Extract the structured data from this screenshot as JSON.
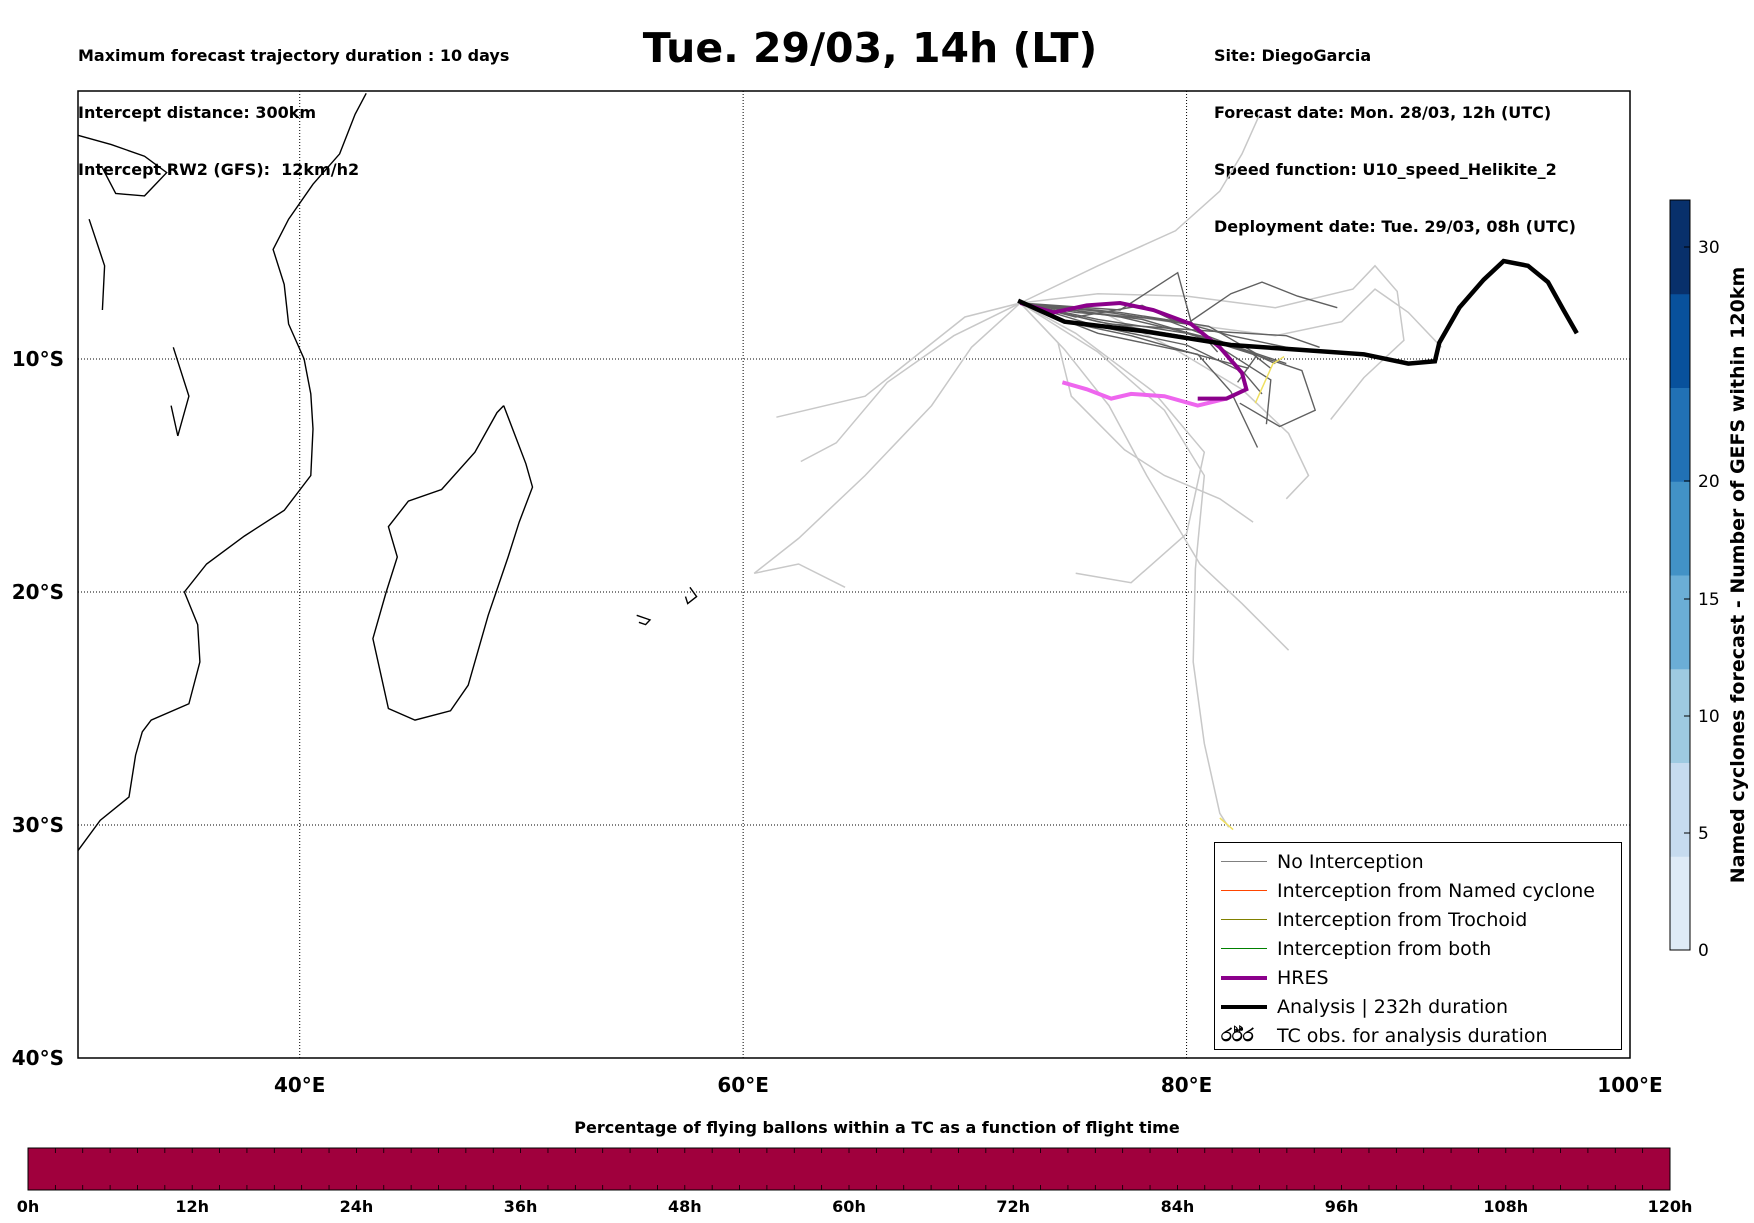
{
  "header": {
    "left_lines": [
      "Maximum forecast trajectory duration : 10 days",
      "Intercept distance: 300km",
      "Intercept RW2 (GFS):  12km/h2"
    ],
    "title": "Tue. 29/03, 14h (LT)",
    "right_lines": [
      "Site: DiegoGarcia",
      "Forecast date: Mon. 28/03, 12h (UTC)",
      "Speed function: U10_speed_Helikite_2",
      "Deployment date: Tue. 29/03, 08h (UTC)"
    ]
  },
  "map": {
    "lon_range": [
      30,
      100
    ],
    "lat_range": [
      -40,
      1.5
    ],
    "lon_ticks": [
      "40°E",
      "60°E",
      "80°E",
      "100°E"
    ],
    "lat_ticks": [
      "10°S",
      "20°S",
      "30°S",
      "40°S"
    ]
  },
  "legend": {
    "items": [
      {
        "label": "No Interception",
        "color": "#808080"
      },
      {
        "label": "Interception from Named cyclone",
        "color": "#ff4500"
      },
      {
        "label": "Interception from Trochoid",
        "color": "#808000"
      },
      {
        "label": "Interception from both",
        "color": "#008000"
      },
      {
        "label": "HRES",
        "color": "#8b008b"
      },
      {
        "label": "Analysis | 232h duration",
        "color": "#000000"
      },
      {
        "label": "TC obs. for analysis duration",
        "color": "#000000",
        "glyph": "ර්ර්ර"
      }
    ]
  },
  "colorbar_right": {
    "label": "Named cyclones forecast - Number of GEFS within 120km",
    "ticks": [
      "0",
      "5",
      "10",
      "15",
      "20",
      "30"
    ],
    "colors": [
      "#deebf7",
      "#c6dbef",
      "#9ecae1",
      "#6baed6",
      "#4292c6",
      "#2171b5",
      "#08519c",
      "#08306b"
    ]
  },
  "colorbar_bottom": {
    "title": "Percentage of flying ballons within a TC as a function of flight time",
    "ticks": [
      "0h",
      "12h",
      "24h",
      "36h",
      "48h",
      "60h",
      "72h",
      "84h",
      "96h",
      "108h",
      "120h"
    ],
    "fill_color": "#a0003d"
  },
  "tracks": {
    "analysis": [
      [
        72.4,
        -7.5
      ],
      [
        74.5,
        -8.4
      ],
      [
        78,
        -8.8
      ],
      [
        82,
        -9.4
      ],
      [
        85,
        -9.6
      ],
      [
        88,
        -9.8
      ],
      [
        90,
        -10.2
      ],
      [
        91.2,
        -10.1
      ],
      [
        91.4,
        -9.3
      ],
      [
        92.3,
        -7.8
      ],
      [
        93.4,
        -6.6
      ],
      [
        94.3,
        -5.8
      ],
      [
        95.4,
        -6.0
      ],
      [
        96.3,
        -6.7
      ],
      [
        97,
        -7.9
      ],
      [
        97.6,
        -8.9
      ]
    ],
    "hres": [
      [
        72.5,
        -7.6
      ],
      [
        74,
        -8.0
      ],
      [
        75.5,
        -7.7
      ],
      [
        77,
        -7.6
      ],
      [
        78.5,
        -7.9
      ],
      [
        80.2,
        -8.5
      ],
      [
        81.5,
        -9.5
      ],
      [
        82.5,
        -10.6
      ],
      [
        82.7,
        -11.3
      ],
      [
        81.8,
        -11.7
      ],
      [
        80.5,
        -11.7
      ]
    ],
    "hres_pink": [
      [
        74.4,
        -11.0
      ],
      [
        75.5,
        -11.3
      ],
      [
        76.6,
        -11.7
      ],
      [
        77.5,
        -11.5
      ],
      [
        79,
        -11.6
      ],
      [
        80.5,
        -12.0
      ],
      [
        81.8,
        -11.7
      ]
    ],
    "ensemble_dark": [
      [
        [
          72.5,
          -7.6
        ],
        [
          76,
          -8.3
        ],
        [
          80,
          -8.9
        ],
        [
          83,
          -9.8
        ],
        [
          83.8,
          -10.4
        ]
      ],
      [
        [
          72.5,
          -7.6
        ],
        [
          75,
          -8.0
        ],
        [
          79,
          -8.3
        ],
        [
          82,
          -9.4
        ],
        [
          84.5,
          -10.2
        ]
      ],
      [
        [
          72.5,
          -7.6
        ],
        [
          76,
          -8.6
        ],
        [
          80,
          -9.4
        ],
        [
          82.6,
          -10.6
        ],
        [
          83.4,
          -11.5
        ]
      ],
      [
        [
          72.5,
          -7.6
        ],
        [
          77,
          -8.0
        ],
        [
          81,
          -8.6
        ],
        [
          83.2,
          -9.8
        ],
        [
          82.3,
          -11.0
        ]
      ],
      [
        [
          72.5,
          -7.6
        ],
        [
          76,
          -8.9
        ],
        [
          80.5,
          -9.8
        ],
        [
          82,
          -11.4
        ],
        [
          83.2,
          -13.8
        ]
      ],
      [
        [
          72.5,
          -7.6
        ],
        [
          78,
          -8.3
        ],
        [
          81.2,
          -9.2
        ],
        [
          85.2,
          -10.5
        ],
        [
          85.8,
          -12.2
        ],
        [
          84.2,
          -12.9
        ],
        [
          82.4,
          -11.9
        ]
      ],
      [
        [
          72.5,
          -7.6
        ],
        [
          76.5,
          -8.5
        ],
        [
          81,
          -8.8
        ],
        [
          84.5,
          -9.0
        ],
        [
          86,
          -9.5
        ]
      ],
      [
        [
          72.5,
          -7.6
        ],
        [
          77,
          -7.9
        ],
        [
          79.6,
          -6.3
        ],
        [
          80.2,
          -8.4
        ],
        [
          81.4,
          -9.7
        ]
      ],
      [
        [
          72.5,
          -7.6
        ],
        [
          75,
          -8.2
        ],
        [
          78,
          -7.7
        ],
        [
          79.3,
          -8.3
        ],
        [
          82,
          -9.0
        ],
        [
          85,
          -9.6
        ]
      ],
      [
        [
          72.5,
          -7.6
        ],
        [
          74.5,
          -8.4
        ],
        [
          77.5,
          -9.0
        ],
        [
          80.8,
          -9.9
        ],
        [
          82.8,
          -10.4
        ]
      ],
      [
        [
          72.5,
          -7.6
        ],
        [
          76.5,
          -8.0
        ],
        [
          80,
          -8.5
        ],
        [
          82,
          -7.2
        ],
        [
          83.4,
          -6.7
        ],
        [
          85,
          -7.3
        ],
        [
          86.8,
          -7.8
        ]
      ],
      [
        [
          72.5,
          -7.6
        ],
        [
          76,
          -8.4
        ],
        [
          81,
          -9.2
        ],
        [
          83.8,
          -10.9
        ],
        [
          83.6,
          -12.8
        ]
      ],
      [
        [
          72.5,
          -7.6
        ],
        [
          77,
          -8.2
        ],
        [
          80.6,
          -9.0
        ],
        [
          82.6,
          -9.6
        ],
        [
          84,
          -10.2
        ]
      ]
    ],
    "ensemble_light": [
      [
        [
          72.5,
          -7.6
        ],
        [
          70,
          -8.2
        ],
        [
          65.5,
          -11.6
        ],
        [
          61.5,
          -12.5
        ]
      ],
      [
        [
          72.5,
          -7.6
        ],
        [
          69.5,
          -9.0
        ],
        [
          66.5,
          -11.0
        ],
        [
          64.2,
          -13.6
        ],
        [
          62.6,
          -14.4
        ]
      ],
      [
        [
          72.5,
          -7.6
        ],
        [
          70.3,
          -9.5
        ],
        [
          68.5,
          -12.0
        ],
        [
          65.5,
          -15.0
        ],
        [
          62.5,
          -17.7
        ],
        [
          60.5,
          -19.2
        ],
        [
          62.5,
          -18.8
        ],
        [
          64.6,
          -19.8
        ]
      ],
      [
        [
          72.5,
          -7.6
        ],
        [
          74.5,
          -9.6
        ],
        [
          76.5,
          -12.0
        ],
        [
          78.2,
          -15.0
        ],
        [
          80.6,
          -18.8
        ],
        [
          82.5,
          -20.5
        ],
        [
          84.6,
          -22.5
        ]
      ],
      [
        [
          72.5,
          -7.6
        ],
        [
          76,
          -9.7
        ],
        [
          79,
          -12.2
        ],
        [
          80.8,
          -15.0
        ],
        [
          80.4,
          -19.0
        ],
        [
          80.3,
          -23.0
        ],
        [
          80.8,
          -26.5
        ],
        [
          81.5,
          -29.5
        ],
        [
          81.9,
          -30.1
        ]
      ],
      [
        [
          72.5,
          -7.6
        ],
        [
          75,
          -8.9
        ],
        [
          78.5,
          -11.4
        ],
        [
          80.8,
          -14.0
        ],
        [
          80,
          -17.5
        ],
        [
          77.5,
          -19.6
        ],
        [
          75,
          -19.2
        ]
      ],
      [
        [
          72.5,
          -7.6
        ],
        [
          76,
          -6.0
        ],
        [
          79.5,
          -4.5
        ],
        [
          81.5,
          -2.8
        ],
        [
          82.5,
          -1.2
        ],
        [
          83.3,
          0.5
        ]
      ],
      [
        [
          72.5,
          -7.6
        ],
        [
          76,
          -7.2
        ],
        [
          80,
          -7.3
        ],
        [
          84,
          -7.8
        ],
        [
          87.5,
          -7.0
        ],
        [
          88.5,
          -6.0
        ],
        [
          89.5,
          -7.1
        ],
        [
          89.8,
          -9.2
        ],
        [
          88,
          -10.8
        ],
        [
          86.5,
          -12.6
        ]
      ],
      [
        [
          72.5,
          -7.6
        ],
        [
          76,
          -8.0
        ],
        [
          80,
          -8.5
        ],
        [
          84,
          -9.0
        ],
        [
          87,
          -8.4
        ],
        [
          88.5,
          -7.0
        ],
        [
          90,
          -8.0
        ],
        [
          91.5,
          -9.5
        ]
      ],
      [
        [
          72.5,
          -7.6
        ],
        [
          76,
          -7.9
        ],
        [
          79.5,
          -9.6
        ],
        [
          82.5,
          -11.3
        ],
        [
          84.6,
          -13.2
        ],
        [
          85.5,
          -15.0
        ],
        [
          84.5,
          -16.0
        ]
      ],
      [
        [
          72.5,
          -7.6
        ],
        [
          74.2,
          -9.3
        ],
        [
          74.8,
          -11.6
        ],
        [
          77.2,
          -13.9
        ],
        [
          79,
          -15.0
        ],
        [
          81.5,
          -16.0
        ],
        [
          83,
          -17.0
        ]
      ]
    ],
    "yellow": [
      [
        83.1,
        -11.9
      ],
      [
        83.9,
        -10.2
      ],
      [
        84.4,
        -9.9
      ]
    ],
    "yellow2": [
      [
        81.5,
        -29.7
      ],
      [
        82.1,
        -30.2
      ]
    ]
  }
}
